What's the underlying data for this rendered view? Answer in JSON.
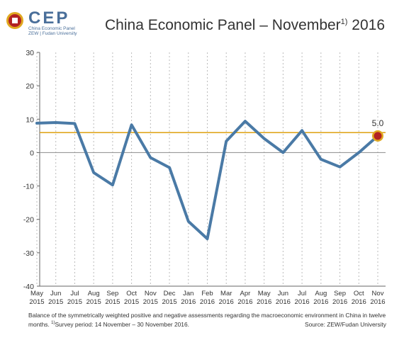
{
  "logo": {
    "text": "CEP",
    "line1": "China Economic Panel",
    "line2": "ZEW | Fudan University"
  },
  "header": {
    "title_main": "China Economic Panel – November",
    "title_sup": "1)",
    "title_year": "2016"
  },
  "note": {
    "text": "Balance of the symmetrically weighted positive and negative assessments regarding the macroeconomic environment in China in twelve months.",
    "footnote_mark": "1)",
    "footnote": "Survey period: 14 November – 30 November 2016.",
    "source": "Source: ZEW/Fudan University"
  },
  "chart_data": {
    "type": "line",
    "categories": [
      [
        "May",
        "2015"
      ],
      [
        "Jun",
        "2015"
      ],
      [
        "Jul",
        "2015"
      ],
      [
        "Aug",
        "2015"
      ],
      [
        "Sep",
        "2015"
      ],
      [
        "Oct",
        "2015"
      ],
      [
        "Nov",
        "2015"
      ],
      [
        "Dec",
        "2015"
      ],
      [
        "Jan",
        "2016"
      ],
      [
        "Feb",
        "2016"
      ],
      [
        "Mar",
        "2016"
      ],
      [
        "Apr",
        "2016"
      ],
      [
        "May",
        "2016"
      ],
      [
        "Jun",
        "2016"
      ],
      [
        "Jul",
        "2016"
      ],
      [
        "Aug",
        "2016"
      ],
      [
        "Sep",
        "2016"
      ],
      [
        "Oct",
        "2016"
      ],
      [
        "Nov",
        "2016"
      ]
    ],
    "series": [
      {
        "values": [
          8.8,
          9.0,
          8.7,
          -6.0,
          -9.7,
          8.3,
          -1.5,
          -4.5,
          -20.6,
          -25.8,
          3.4,
          9.4,
          4.2,
          0.0,
          6.6,
          -2.0,
          -4.3,
          0.0,
          5.0
        ]
      }
    ],
    "yticks": [
      30,
      20,
      10,
      0,
      -10,
      -20,
      -30,
      -40
    ],
    "ylim": [
      -40,
      30
    ],
    "reference_line": 6.0,
    "last_label": "5.0",
    "grid": "vertical dotted",
    "colors": {
      "line": "#4a7aa6",
      "reference": "#e0a820",
      "zero": "#999999",
      "marker_fill": "#b22222",
      "marker_ring": "#e0a820"
    }
  }
}
